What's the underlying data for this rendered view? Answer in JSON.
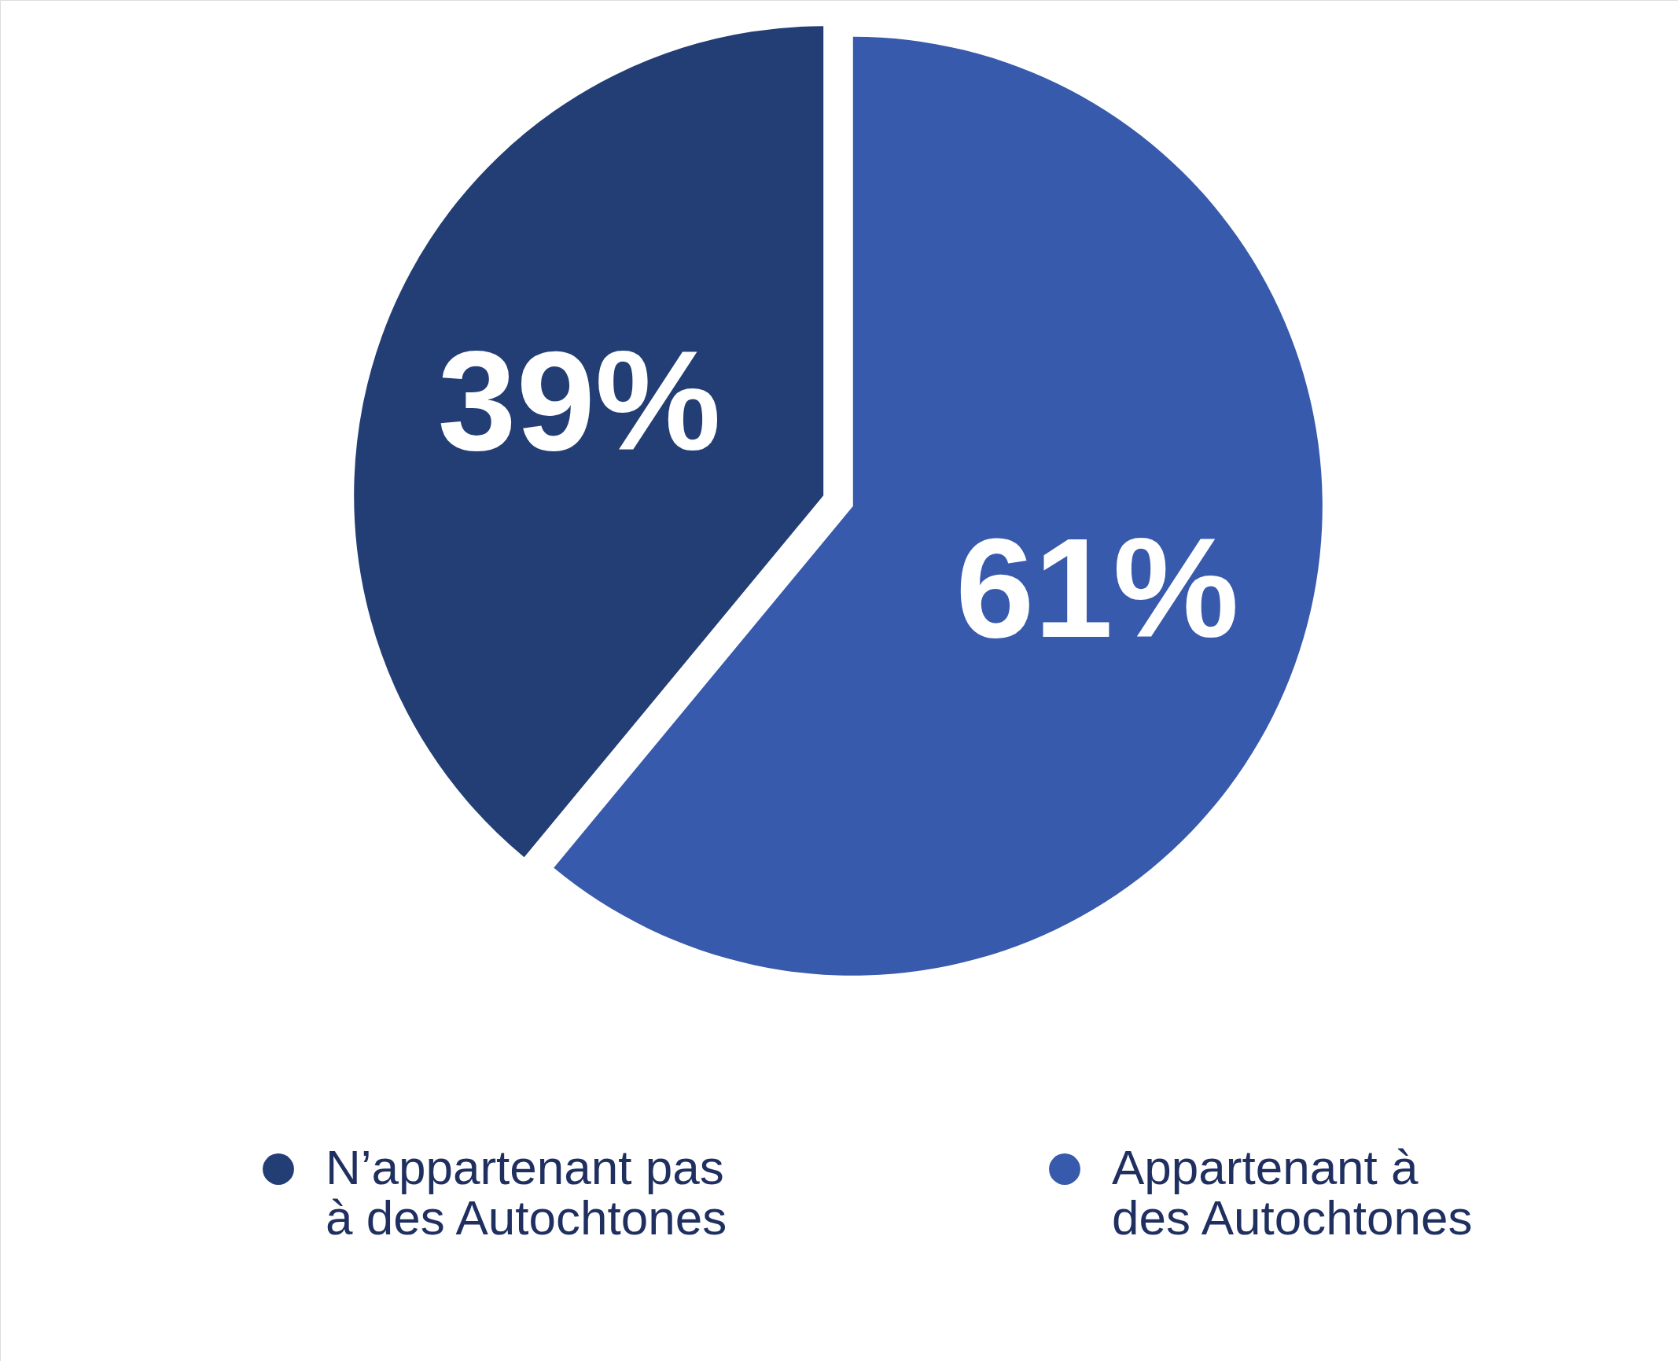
{
  "chart_data": {
    "type": "pie",
    "categories": [
      "N’appartenant pas à des Autochtones",
      "Appartenant à des Autochtones"
    ],
    "values": [
      39,
      61
    ],
    "colors": [
      "#233e75",
      "#385aac"
    ],
    "value_labels": [
      "39%",
      "61%"
    ],
    "legend": "bottom"
  }
}
